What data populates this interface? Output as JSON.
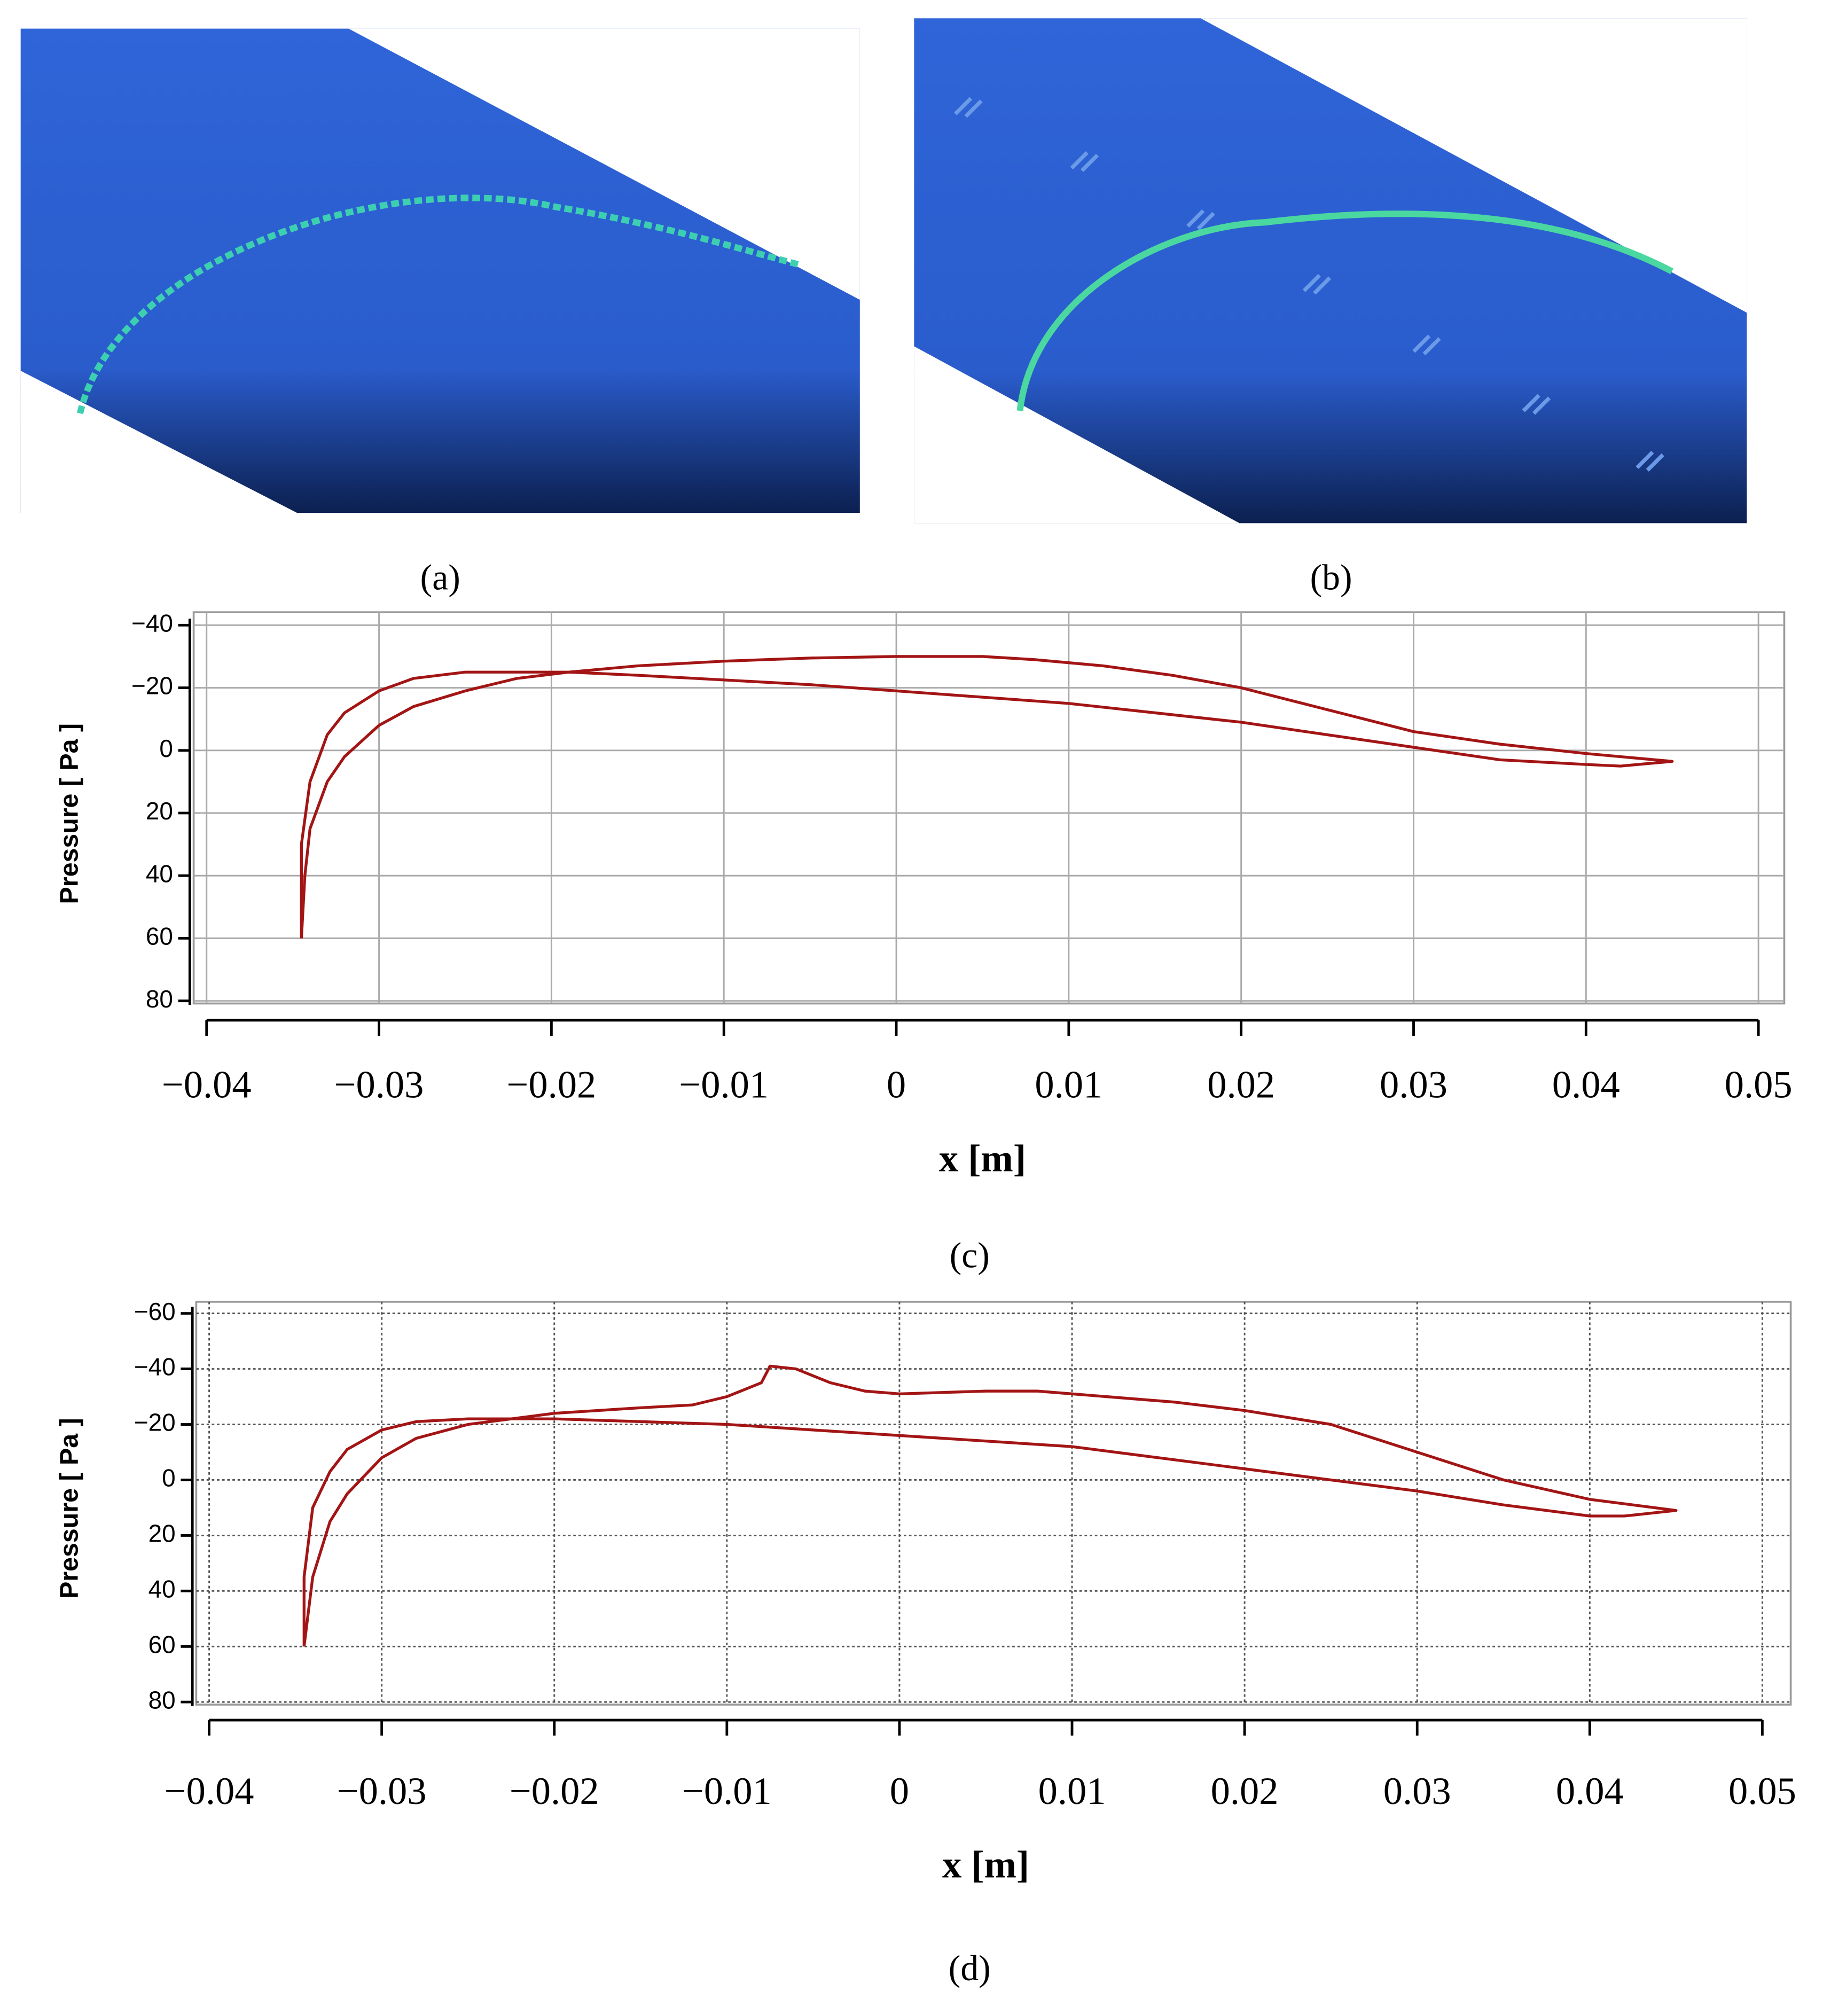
{
  "images": [
    {
      "caption": "(a)"
    },
    {
      "caption": "(b)"
    }
  ],
  "chart_data": [
    {
      "type": "line",
      "caption": "(c)",
      "xlabel": "x [m]",
      "ylabel": "Pressure [ Pa ]",
      "xlim": [
        -0.04,
        0.05
      ],
      "ylim": [
        80,
        -40
      ],
      "xticks": [
        {
          "value": -0.04,
          "label": "−0.04"
        },
        {
          "value": -0.03,
          "label": "−0.03"
        },
        {
          "value": -0.02,
          "label": "−0.02"
        },
        {
          "value": -0.01,
          "label": "−0.01"
        },
        0,
        0.01,
        0.02,
        0.03,
        0.04,
        0.05
      ],
      "yticks": [
        {
          "value": -40,
          "label": "−40"
        },
        {
          "value": -20,
          "label": "−20"
        },
        0,
        20,
        40,
        60,
        80
      ],
      "grid": true,
      "grid_style": "solid",
      "x": [
        -0.0345,
        -0.0343,
        -0.034,
        -0.033,
        -0.032,
        -0.03,
        -0.028,
        -0.025,
        -0.022,
        -0.019,
        -0.015,
        -0.01,
        -0.005,
        0,
        0.005,
        0.008,
        0.012,
        0.016,
        0.02,
        0.025,
        0.03,
        0.035,
        0.04,
        0.045,
        0.042,
        0.04,
        0.035,
        0.03,
        0.025,
        0.02,
        0.015,
        0.01,
        0.005,
        0,
        -0.005,
        -0.01,
        -0.015,
        -0.019,
        -0.022,
        -0.025,
        -0.028,
        -0.03,
        -0.032,
        -0.033,
        -0.034,
        -0.0345,
        -0.0345
      ],
      "series": [
        {
          "color": "#a31515",
          "values": [
            60,
            40,
            25,
            10,
            2,
            -8,
            -14,
            -19,
            -23,
            -25,
            -27,
            -28.5,
            -29.5,
            -30,
            -30,
            -29,
            -27,
            -24,
            -20,
            -13,
            -6,
            -2,
            1,
            3.5,
            5,
            4.5,
            3,
            -1,
            -5,
            -9,
            -12,
            -15,
            -17,
            -19,
            -21,
            -22.5,
            -24,
            -25,
            -25,
            -25,
            -23,
            -19,
            -12,
            -5,
            10,
            30,
            60
          ]
        }
      ]
    },
    {
      "type": "line",
      "caption": "(d)",
      "xlabel": "x [m]",
      "ylabel": "Pressure [ Pa ]",
      "xlim": [
        -0.04,
        0.05
      ],
      "ylim": [
        80,
        -60
      ],
      "xticks": [
        {
          "value": -0.04,
          "label": "−0.04"
        },
        {
          "value": -0.03,
          "label": "−0.03"
        },
        {
          "value": -0.02,
          "label": "−0.02"
        },
        {
          "value": -0.01,
          "label": "−0.01"
        },
        0,
        0.01,
        0.02,
        0.03,
        0.04,
        0.05
      ],
      "yticks": [
        {
          "value": -60,
          "label": "−60"
        },
        {
          "value": -40,
          "label": "−40"
        },
        {
          "value": -20,
          "label": "−20"
        },
        0,
        20,
        40,
        60,
        80
      ],
      "grid": true,
      "grid_style": "dotted",
      "x": [
        -0.0345,
        -0.034,
        -0.033,
        -0.032,
        -0.03,
        -0.028,
        -0.025,
        -0.02,
        -0.015,
        -0.012,
        -0.01,
        -0.008,
        -0.0075,
        -0.006,
        -0.004,
        -0.002,
        0,
        0.005,
        0.008,
        0.012,
        0.016,
        0.02,
        0.025,
        0.03,
        0.035,
        0.04,
        0.045,
        0.042,
        0.04,
        0.035,
        0.03,
        0.025,
        0.02,
        0.015,
        0.01,
        0,
        -0.005,
        -0.01,
        -0.015,
        -0.02,
        -0.025,
        -0.028,
        -0.03,
        -0.032,
        -0.033,
        -0.034,
        -0.0345,
        -0.0345
      ],
      "series": [
        {
          "color": "#a31515",
          "values": [
            60,
            35,
            15,
            5,
            -8,
            -15,
            -20,
            -24,
            -26,
            -27,
            -30,
            -35,
            -41,
            -40,
            -35,
            -32,
            -31,
            -32,
            -32,
            -30,
            -28,
            -25,
            -20,
            -10,
            0,
            7,
            11,
            13,
            13,
            9,
            4,
            0,
            -4,
            -8,
            -12,
            -16,
            -18,
            -20,
            -21,
            -22,
            -22,
            -21,
            -18,
            -11,
            -3,
            10,
            35,
            60
          ]
        }
      ]
    }
  ]
}
